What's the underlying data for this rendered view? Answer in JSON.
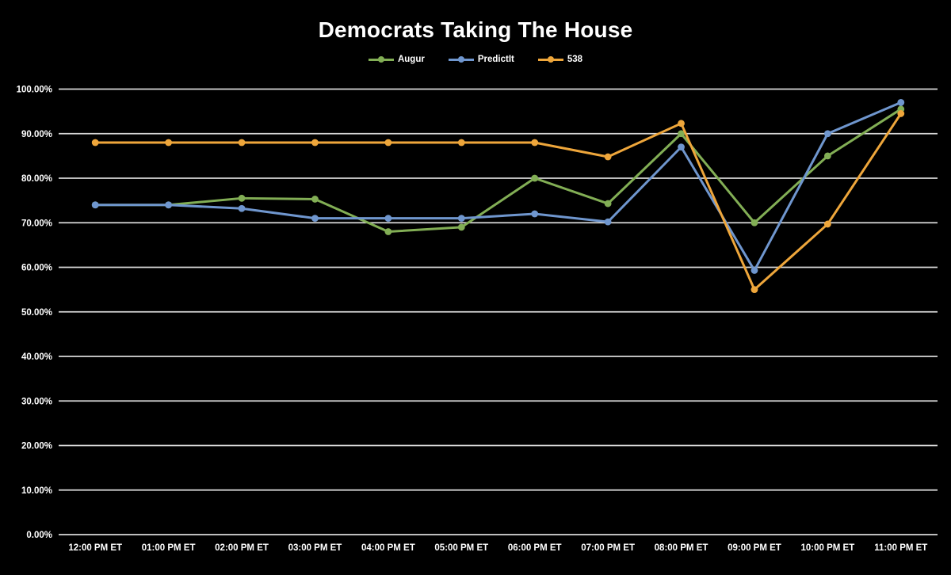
{
  "title": "Democrats Taking The House",
  "colors": {
    "background": "#000000",
    "text": "#ffffff",
    "gridline": "#d8d8d8",
    "augur_green": "#82ae55",
    "predictit_blue": "#6f96ce",
    "fivethirtyeight_orange": "#eea63b"
  },
  "chart_data": {
    "type": "line",
    "title": "Democrats Taking The House",
    "categories": [
      "12:00 PM ET",
      "01:00 PM ET",
      "02:00 PM ET",
      "03:00 PM ET",
      "04:00 PM ET",
      "05:00 PM ET",
      "06:00 PM ET",
      "07:00 PM ET",
      "08:00 PM ET",
      "09:00 PM ET",
      "10:00 PM ET",
      "11:00 PM ET"
    ],
    "series": [
      {
        "name": "Augur",
        "color": "#82ae55",
        "values": [
          74,
          74,
          75.5,
          75.3,
          68,
          69,
          80,
          74.3,
          90,
          70,
          85,
          95.5
        ]
      },
      {
        "name": "PredictIt",
        "color": "#6f96ce",
        "values": [
          74,
          74,
          73.2,
          71,
          71,
          71,
          72,
          70.2,
          87,
          59.3,
          90,
          97
        ]
      },
      {
        "name": "538",
        "color": "#eea63b",
        "values": [
          88,
          88,
          88,
          88,
          88,
          88,
          88,
          84.8,
          92.3,
          55,
          69.7,
          94.5
        ]
      }
    ],
    "y_axis": {
      "min": 0,
      "max": 100,
      "step": 10,
      "tick_labels": [
        "0.00%",
        "10.00%",
        "20.00%",
        "30.00%",
        "40.00%",
        "50.00%",
        "60.00%",
        "70.00%",
        "80.00%",
        "90.00%",
        "100.00%"
      ]
    },
    "xlabel": "",
    "ylabel": "",
    "grid": true,
    "legend_position": "top",
    "marker": "circle"
  }
}
